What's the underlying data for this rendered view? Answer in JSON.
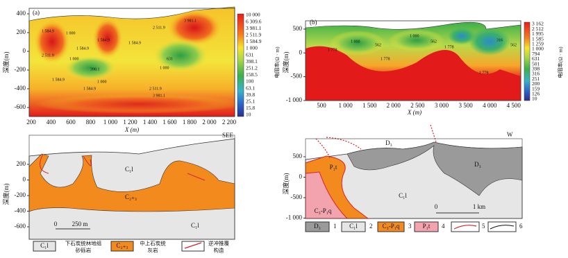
{
  "panel_a": {
    "label": "(a)",
    "y_axis_label": "深度(m)",
    "x_axis_label": "X (m)",
    "y_ticks": [
      "400",
      "200",
      "0",
      "-200",
      "-400",
      "-600"
    ],
    "x_ticks": [
      "200",
      "400",
      "600",
      "800",
      "1 000",
      "1 200",
      "1 400",
      "1 600",
      "1 800",
      "2 000",
      "2 200"
    ],
    "colorbar_title": "电阻率(Ω · m)",
    "colorbar_labels": [
      "10 000",
      "6 309.6",
      "3 981.1",
      "2 511.9",
      "1 584.9",
      "1 000",
      "631",
      "398.1",
      "251.2",
      "158.5",
      "100",
      "63.1",
      "39.8",
      "25.1",
      "15.8",
      "10"
    ],
    "contour_labels": [
      "1 584.9",
      "2 511.9",
      "1 000",
      "1 584.9",
      "1 584.9",
      "1 584.9",
      "2 511.9",
      "3 981.1",
      "1 000",
      "398.1",
      "631",
      "1 000",
      "1 584.9",
      "1 000",
      "1 584.9",
      "2 511.9",
      "3 981.1"
    ]
  },
  "panel_b": {
    "label": "(b)",
    "y_axis_label": "深度(m)",
    "x_axis_label": "X (m)",
    "y_ticks": [
      "500",
      "0",
      "-500",
      "-1 000"
    ],
    "x_ticks": [
      "500",
      "1 000",
      "1 500",
      "2 000",
      "2 500",
      "3 000",
      "3 500",
      "4 000",
      "4 500"
    ],
    "colorbar_title": "电阻率(Ω · m)",
    "colorbar_labels": [
      "3 162",
      "2 512",
      "1 995",
      "1 585",
      "1 259",
      "1 000",
      "794",
      "631",
      "501",
      "398",
      "316",
      "251",
      "200",
      "159",
      "126",
      "10"
    ],
    "contour_labels": [
      "1 778",
      "1 000",
      "562",
      "1 778",
      "1 000",
      "562",
      "1 778",
      "1 778",
      "316",
      "562"
    ]
  },
  "section_a": {
    "y_axis_label": "深度(m)",
    "y_ticks": [
      "200",
      "0",
      "-200",
      "-400",
      "-600"
    ],
    "unit_labels": [
      "C₁l",
      "C₂₊₃",
      "C₁l"
    ],
    "direction": "SEE",
    "scale": [
      "0",
      "250 m"
    ]
  },
  "section_b": {
    "y_axis_label": "深度(m)",
    "y_ticks": [
      "500",
      "0",
      "-500",
      "-1 000"
    ],
    "unit_labels": [
      "D₃",
      "D₃",
      "P₁t",
      "C₁l",
      "C₃-P₁q"
    ],
    "direction": "W",
    "scale": [
      "0",
      "1 km"
    ]
  },
  "legend_a": [
    {
      "symbol": "C₁l",
      "text": [
        "下石炭统林地组",
        "砂砾岩"
      ]
    },
    {
      "symbol": "C₂₊₃",
      "text": [
        "中上石炭统",
        "灰岩"
      ]
    },
    {
      "text": [
        "逆冲推覆",
        "构造"
      ]
    }
  ],
  "legend_b": [
    {
      "symbol": "D₃",
      "number": "1"
    },
    {
      "symbol": "C₁l",
      "number": "2"
    },
    {
      "symbol": "C₃-P₁q",
      "number": "3"
    },
    {
      "symbol": "P₁t",
      "number": "4"
    },
    {
      "number": "5"
    },
    {
      "number": "6"
    }
  ]
}
